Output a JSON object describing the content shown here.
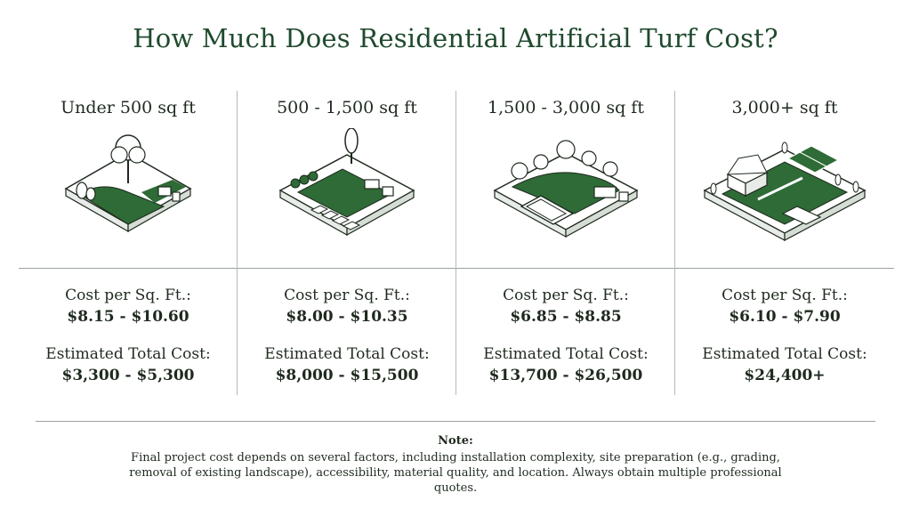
{
  "title": "How Much Does Residential Artificial Turf Cost?",
  "colors": {
    "accent": "#2e6b36",
    "heading": "#1f4a2e",
    "text": "#1f2a1f"
  },
  "tiers": [
    {
      "size": "Under 500 sq ft",
      "illustration": "small-yard-icon",
      "cost_label": "Cost per Sq. Ft.:",
      "cost_value": "$8.15 - $10.60",
      "total_label": "Estimated Total Cost:",
      "total_value": "$3,300 - $5,300"
    },
    {
      "size": "500 - 1,500 sq ft",
      "illustration": "patio-yard-icon",
      "cost_label": "Cost per Sq. Ft.:",
      "cost_value": "$8.00 - $10.35",
      "total_label": "Estimated Total Cost:",
      "total_value": "$8,000 - $15,500"
    },
    {
      "size": "1,500 - 3,000 sq ft",
      "illustration": "pool-yard-icon",
      "cost_label": "Cost per Sq. Ft.:",
      "cost_value": "$6.85 - $8.85",
      "total_label": "Estimated Total Cost:",
      "total_value": "$13,700 - $26,500"
    },
    {
      "size": "3,000+ sq ft",
      "illustration": "estate-yard-icon",
      "cost_label": "Cost per Sq. Ft.:",
      "cost_value": "$6.10 - $7.90",
      "total_label": "Estimated Total Cost:",
      "total_value": "$24,400+"
    }
  ],
  "note": {
    "title": "Note:",
    "text": "Final project cost depends on several factors, including installation complexity, site preparation (e.g., grading, removal of existing landscape), accessibility, material quality, and location. Always obtain multiple professional quotes."
  }
}
